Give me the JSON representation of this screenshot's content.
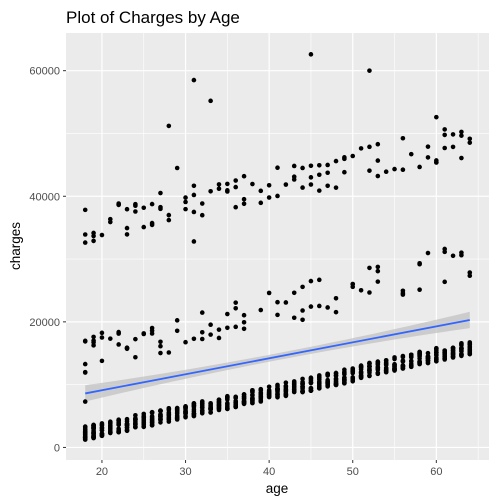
{
  "chart_data": {
    "type": "scatter",
    "title": "Plot of Charges by Age",
    "xlabel": "age",
    "ylabel": "charges",
    "xlim": [
      15.7,
      66.3
    ],
    "ylim": [
      -2000,
      66000
    ],
    "x_ticks": [
      20,
      30,
      40,
      50,
      60
    ],
    "x_tick_labels": [
      "20",
      "30",
      "40",
      "50",
      "60"
    ],
    "y_ticks": [
      0,
      20000,
      40000,
      60000
    ],
    "y_tick_labels": [
      "0",
      "20000",
      "40000",
      "60000"
    ],
    "grid": true,
    "legend": "none",
    "colors": {
      "panel_background": "#ebebeb",
      "grid_line": "#ffffff",
      "points": "#000000",
      "trend_line": "#3366ff",
      "confidence_band": "#bfbfbf"
    },
    "trend": {
      "method": "linear",
      "x": [
        18,
        64
      ],
      "y": [
        8600,
        20300
      ],
      "ci_halfwidth_ends": 1300,
      "ci_halfwidth_center": 550
    },
    "clusters": [
      {
        "name": "lower",
        "base": 1200,
        "slope": 290,
        "spread": 2200
      },
      {
        "name": "middle",
        "base": 14000,
        "slope": 320,
        "spread": 6000
      },
      {
        "name": "upper",
        "base": 34000,
        "slope": 300,
        "spread": 5500
      }
    ],
    "outliers": [
      {
        "x": 45,
        "y": 62600
      },
      {
        "x": 52,
        "y": 60000
      },
      {
        "x": 31,
        "y": 58500
      },
      {
        "x": 33,
        "y": 55200
      },
      {
        "x": 60,
        "y": 52600
      },
      {
        "x": 28,
        "y": 51200
      },
      {
        "x": 29,
        "y": 44500
      },
      {
        "x": 31,
        "y": 32800
      },
      {
        "x": 18,
        "y": 7300
      }
    ]
  }
}
